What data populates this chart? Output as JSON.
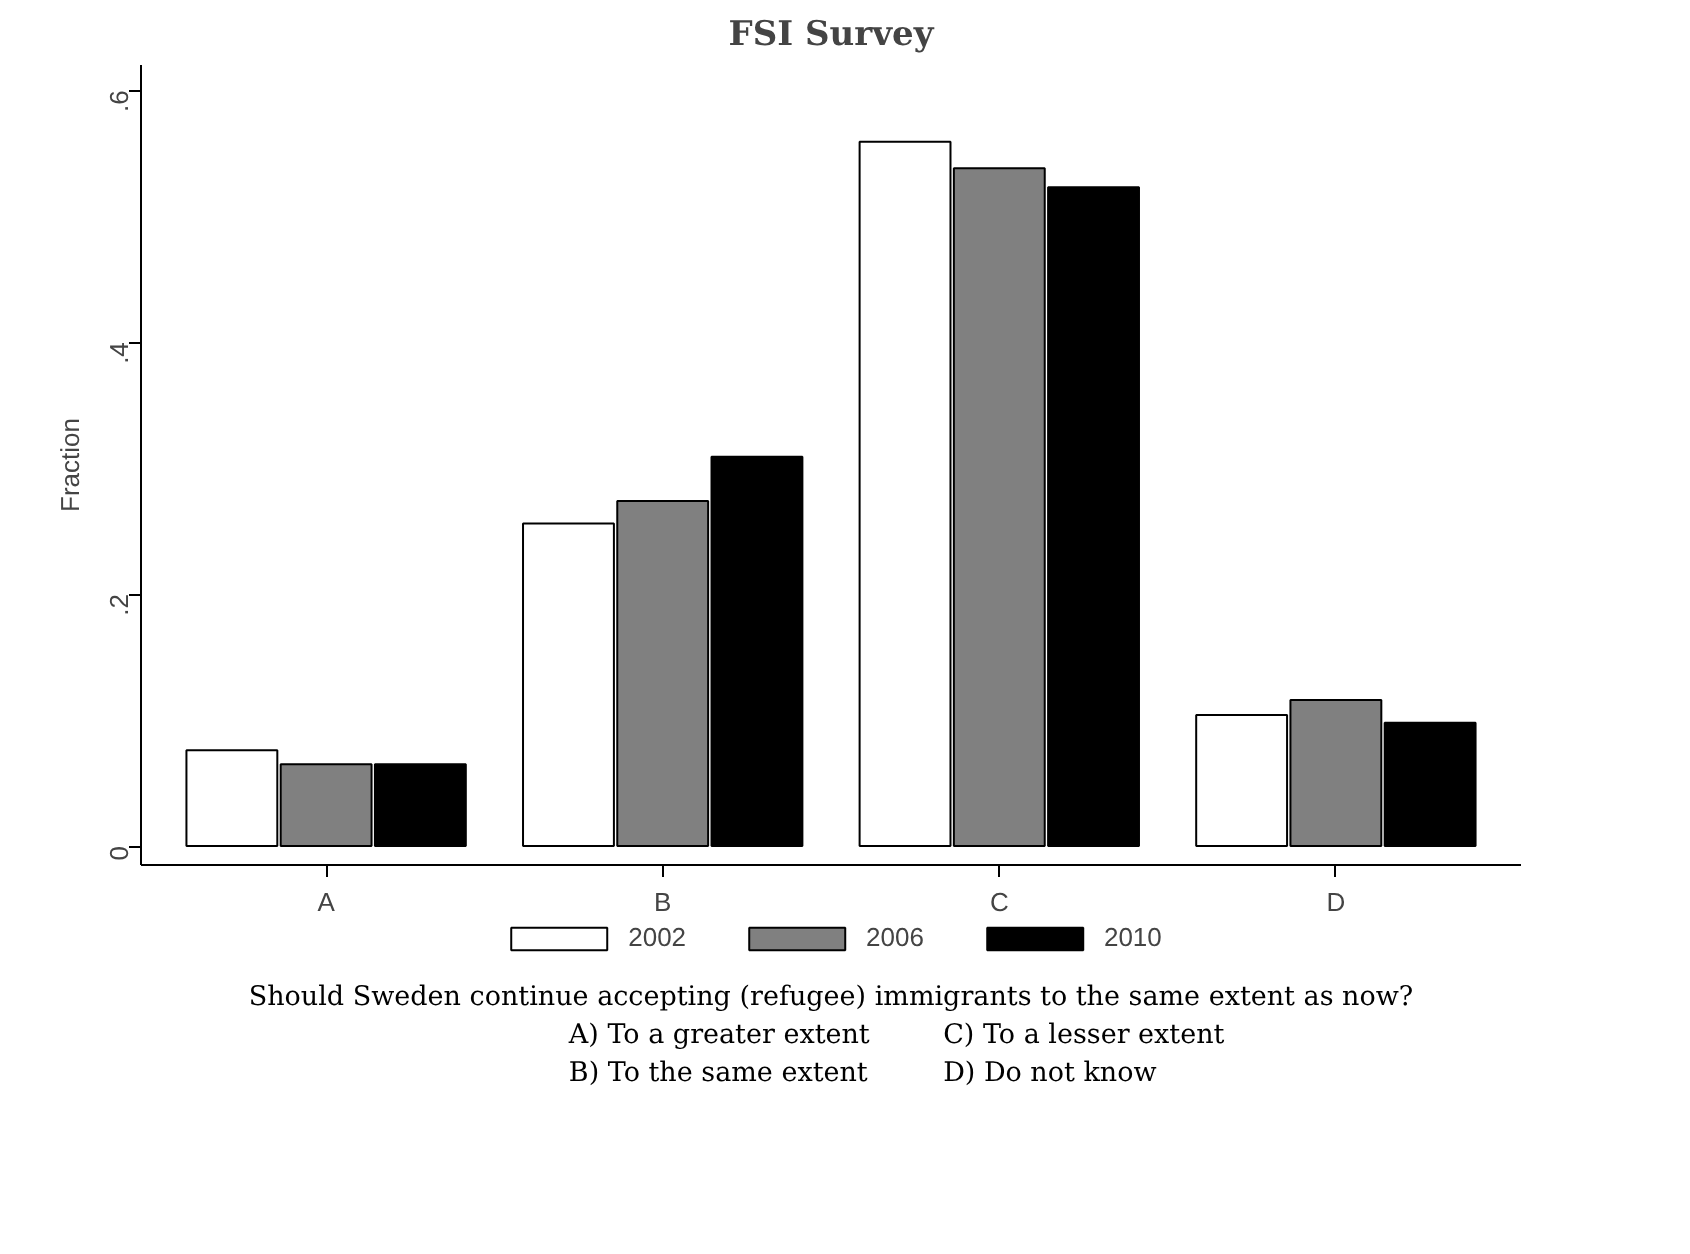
{
  "chart_data": {
    "type": "bar",
    "title": "FSI Survey",
    "ylabel": "Fraction",
    "categories": [
      "A",
      "B",
      "C",
      "D"
    ],
    "series": [
      {
        "name": "2002",
        "color": "#ffffff",
        "values": [
          0.076,
          0.256,
          0.559,
          0.104
        ]
      },
      {
        "name": "2006",
        "color": "#808080",
        "values": [
          0.065,
          0.274,
          0.538,
          0.116
        ]
      },
      {
        "name": "2010",
        "color": "#000000",
        "values": [
          0.065,
          0.309,
          0.523,
          0.098
        ]
      }
    ],
    "ylim": [
      -0.015,
      0.62
    ],
    "yticks": [
      {
        "value": 0,
        "label": "0"
      },
      {
        "value": 0.2,
        "label": ".2"
      },
      {
        "value": 0.4,
        "label": ".4"
      },
      {
        "value": 0.6,
        "label": ".6"
      }
    ],
    "grid": false,
    "legend": "bottom",
    "annotations": [
      "Should Sweden continue accepting (refugee) immigrants to the same extent as now?",
      "A) To a greater extent",
      "C) To a lesser extent",
      "B) To the same extent",
      "D) Do not know"
    ]
  }
}
